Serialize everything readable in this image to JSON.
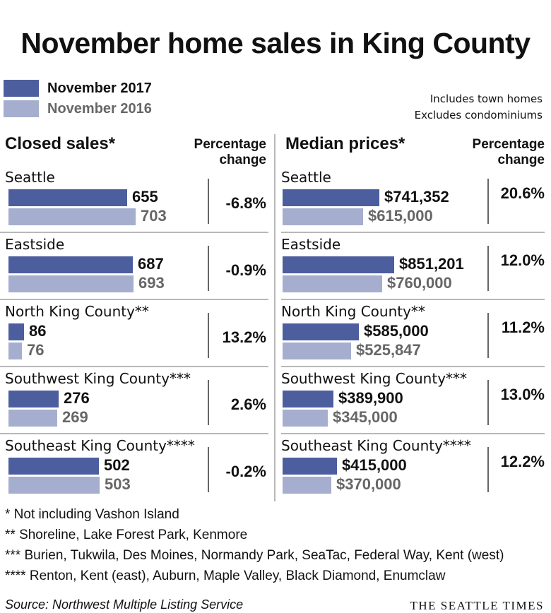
{
  "colors": {
    "series_2017": "#4c5e9e",
    "series_2016": "#a6aecf",
    "text_2017": "#111111",
    "text_2016": "#666666"
  },
  "notes": [
    "Includes town homes",
    "Excludes condominiums"
  ],
  "footnotes": [
    "* Not including Vashon Island",
    "**  Shoreline, Lake Forest Park, Kenmore",
    "*** Burien, Tukwila, Des Moines, Normandy Park, SeaTac, Federal Way, Kent (west)",
    "**** Renton, Kent (east), Auburn, Maple Valley, Black Diamond, Enumclaw"
  ],
  "source": "Source: Northwest Multiple Listing Service",
  "brand": "THE SEATTLE TIMES",
  "chart_data": {
    "type": "bar",
    "orientation": "horizontal",
    "title": "November home sales in King County",
    "legend": [
      "November 2017",
      "November 2016"
    ],
    "legend_position": "top-left",
    "categories": [
      "Seattle",
      "Eastside",
      "North King County**",
      "Southwest King County***",
      "Southeast King County****"
    ],
    "panels": [
      {
        "title": "Closed sales*",
        "change_header": [
          "Percentage",
          "change"
        ],
        "xlim": [
          0,
          860
        ],
        "series": [
          {
            "name": "November 2017",
            "values": [
              655,
              687,
              86,
              276,
              502
            ],
            "labels": [
              "655",
              "687",
              "86",
              "276",
              "502"
            ]
          },
          {
            "name": "November 2016",
            "values": [
              703,
              693,
              76,
              269,
              503
            ],
            "labels": [
              "703",
              "693",
              "76",
              "269",
              "503"
            ]
          }
        ],
        "percent_change": [
          "-6.8%",
          "-0.9%",
          "13.2%",
          "2.6%",
          "-0.2%"
        ]
      },
      {
        "title": "Median prices*",
        "change_header": [
          "Percentage",
          "change"
        ],
        "xlim": [
          0,
          1080000
        ],
        "series": [
          {
            "name": "November 2017",
            "values": [
              741352,
              851201,
              585000,
              389900,
              415000
            ],
            "labels": [
              "$741,352",
              "$851,201",
              "$585,000",
              "$389,900",
              "$415,000"
            ]
          },
          {
            "name": "November 2016",
            "values": [
              615000,
              760000,
              525847,
              345000,
              370000
            ],
            "labels": [
              "$615,000",
              "$760,000",
              "$525,847",
              "$345,000",
              "$370,000"
            ]
          }
        ],
        "percent_change": [
          "20.6%",
          "12.0%",
          "11.2%",
          "13.0%",
          "12.2%"
        ]
      }
    ]
  }
}
